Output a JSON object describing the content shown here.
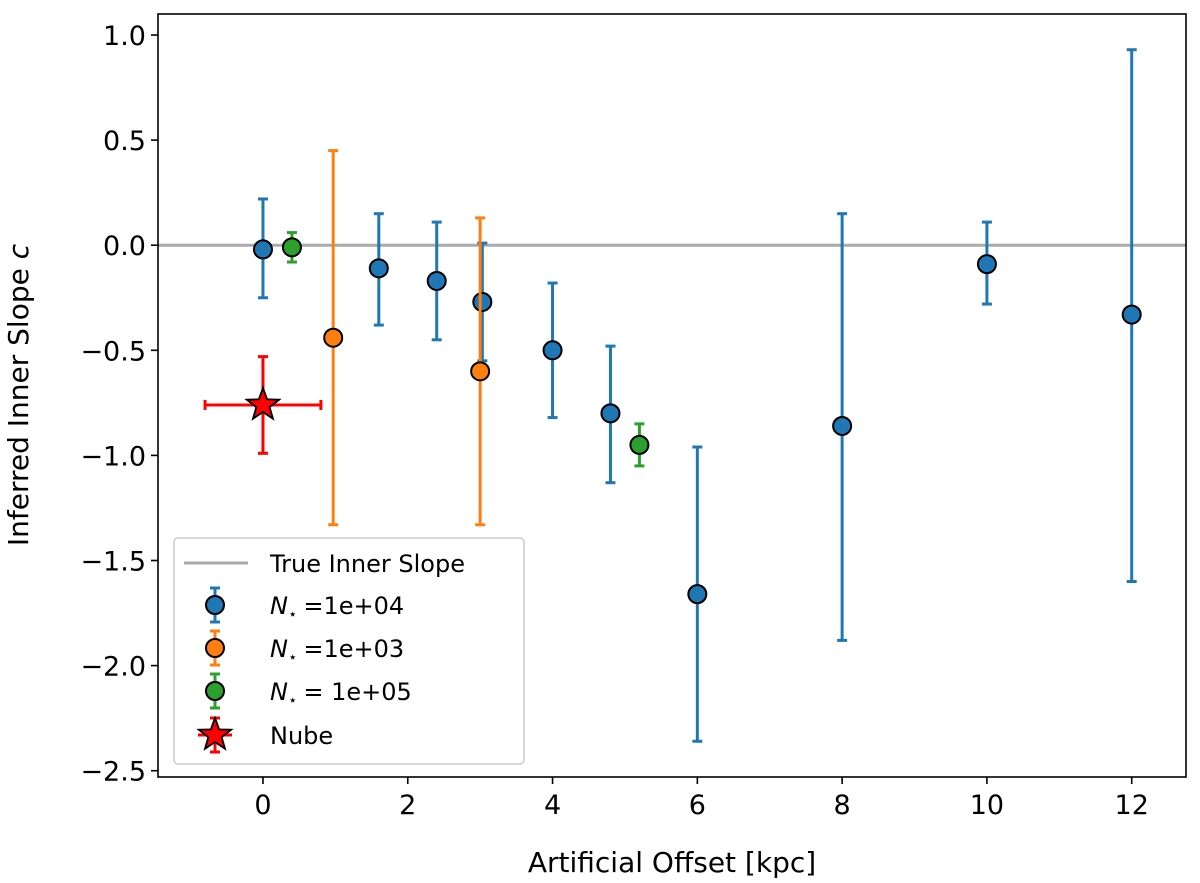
{
  "chart_data": {
    "type": "scatter",
    "title": "",
    "xlabel": "Artificial Offset [kpc]",
    "ylabel": "Inferred Inner Slope c",
    "xlim": [
      -1.45,
      12.75
    ],
    "ylim": [
      -2.53,
      1.1
    ],
    "xticks": [
      0,
      2,
      4,
      6,
      8,
      10,
      12
    ],
    "yticks": [
      1.0,
      0.5,
      0.0,
      -0.5,
      -1.0,
      -1.5,
      -2.0,
      -2.5
    ],
    "grid": false,
    "legend_position": "lower-left",
    "reference_line": {
      "label": "True Inner Slope",
      "y": 0.0,
      "color": "#aaaaaa"
    },
    "series": [
      {
        "name": "1e+04",
        "color": "#1f77b4",
        "marker": "circle",
        "points": [
          {
            "x": 0,
            "y": -0.02,
            "ylo": -0.25,
            "yhi": 0.22
          },
          {
            "x": 1.6,
            "y": -0.11,
            "ylo": -0.38,
            "yhi": 0.15
          },
          {
            "x": 2.4,
            "y": -0.17,
            "ylo": -0.45,
            "yhi": 0.11
          },
          {
            "x": 3.03,
            "y": -0.27,
            "ylo": -0.55,
            "yhi": 0.01
          },
          {
            "x": 4,
            "y": -0.5,
            "ylo": -0.82,
            "yhi": -0.18
          },
          {
            "x": 4.8,
            "y": -0.8,
            "ylo": -1.13,
            "yhi": -0.48
          },
          {
            "x": 6,
            "y": -1.66,
            "ylo": -2.36,
            "yhi": -0.96
          },
          {
            "x": 8,
            "y": -0.86,
            "ylo": -1.88,
            "yhi": 0.15
          },
          {
            "x": 10,
            "y": -0.09,
            "ylo": -0.28,
            "yhi": 0.11
          },
          {
            "x": 12,
            "y": -0.33,
            "ylo": -1.6,
            "yhi": 0.93
          }
        ]
      },
      {
        "name": "1e+03",
        "color": "#ff7f0e",
        "marker": "circle",
        "points": [
          {
            "x": 0.97,
            "y": -0.44,
            "ylo": -1.33,
            "yhi": 0.45
          },
          {
            "x": 3,
            "y": -0.6,
            "ylo": -1.33,
            "yhi": 0.13
          }
        ]
      },
      {
        "name": " 1e+05",
        "color": "#2ca02c",
        "marker": "circle",
        "points": [
          {
            "x": 0.4,
            "y": -0.01,
            "ylo": -0.08,
            "yhi": 0.06
          },
          {
            "x": 5.2,
            "y": -0.95,
            "ylo": -1.05,
            "yhi": -0.85
          }
        ]
      },
      {
        "name": "Nube",
        "color": "#ff0000",
        "marker": "star",
        "points": [
          {
            "x": 0,
            "y": -0.76,
            "ylo": -0.99,
            "yhi": -0.53,
            "xlo": -0.8,
            "xhi": 0.8
          }
        ]
      }
    ],
    "legend": [
      {
        "label": "True Inner Slope",
        "kind": "line"
      },
      {
        "label": "=1e+04",
        "prefix": "N",
        "sub": "⋆",
        "kind": "series",
        "series": 0
      },
      {
        "label": "=1e+03",
        "prefix": "N",
        "sub": "⋆",
        "kind": "series",
        "series": 1
      },
      {
        "label": "= 1e+05",
        "prefix": "N",
        "sub": "⋆",
        "kind": "series",
        "series": 2
      },
      {
        "label": "Nube",
        "kind": "series",
        "series": 3
      }
    ]
  }
}
